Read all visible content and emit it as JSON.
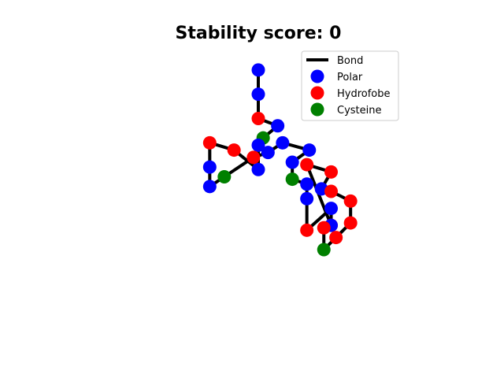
{
  "chart_data": {
    "type": "scatter",
    "title": "Stability score: 0",
    "xlabel": "",
    "ylabel": "",
    "axes_visible": false,
    "grid": false,
    "xlim": [
      -1,
      9
    ],
    "ylim": [
      -1,
      11
    ],
    "legend": {
      "placement": "top-right",
      "entries": [
        {
          "label": "Bond",
          "kind": "line",
          "color": "#000000"
        },
        {
          "label": "Polar",
          "kind": "marker",
          "color": "#0000ff"
        },
        {
          "label": "Hydrofobe",
          "kind": "marker",
          "color": "#ff0000"
        },
        {
          "label": "Cysteine",
          "kind": "marker",
          "color": "#008000"
        }
      ]
    },
    "bond_color": "#000000",
    "type_colors": {
      "P": "#0000ff",
      "H": "#ff0000",
      "C": "#008000"
    },
    "chain": [
      {
        "x": 4.0,
        "y": 10.0,
        "t": "P"
      },
      {
        "x": 4.0,
        "y": 9.0,
        "t": "P"
      },
      {
        "x": 4.0,
        "y": 8.0,
        "t": "H"
      },
      {
        "x": 4.8,
        "y": 7.7,
        "t": "P"
      },
      {
        "x": 4.2,
        "y": 7.2,
        "t": "C"
      },
      {
        "x": 4.0,
        "y": 6.9,
        "t": "P"
      },
      {
        "x": 4.0,
        "y": 5.9,
        "t": "P"
      },
      {
        "x": 3.0,
        "y": 6.7,
        "t": "H"
      },
      {
        "x": 2.0,
        "y": 7.0,
        "t": "H"
      },
      {
        "x": 2.0,
        "y": 6.0,
        "t": "P"
      },
      {
        "x": 2.0,
        "y": 5.2,
        "t": "P"
      },
      {
        "x": 2.6,
        "y": 5.6,
        "t": "C"
      },
      {
        "x": 3.8,
        "y": 6.4,
        "t": "H"
      },
      {
        "x": 4.4,
        "y": 6.6,
        "t": "P"
      },
      {
        "x": 5.0,
        "y": 7.0,
        "t": "P"
      },
      {
        "x": 6.1,
        "y": 6.7,
        "t": "P"
      },
      {
        "x": 5.4,
        "y": 6.2,
        "t": "P"
      },
      {
        "x": 5.4,
        "y": 5.5,
        "t": "C"
      },
      {
        "x": 6.0,
        "y": 5.3,
        "t": "P"
      },
      {
        "x": 6.0,
        "y": 4.7,
        "t": "P"
      },
      {
        "x": 6.0,
        "y": 3.4,
        "t": "H"
      },
      {
        "x": 7.0,
        "y": 4.3,
        "t": "P"
      },
      {
        "x": 7.0,
        "y": 3.6,
        "t": "H"
      },
      {
        "x": 7.0,
        "y": 3.6,
        "t": "P"
      },
      {
        "x": 6.0,
        "y": 6.1,
        "t": "H"
      },
      {
        "x": 7.0,
        "y": 5.8,
        "t": "H"
      },
      {
        "x": 6.6,
        "y": 5.1,
        "t": "P"
      },
      {
        "x": 7.0,
        "y": 5.0,
        "t": "H"
      },
      {
        "x": 7.8,
        "y": 4.6,
        "t": "H"
      },
      {
        "x": 7.8,
        "y": 3.7,
        "t": "H"
      },
      {
        "x": 7.2,
        "y": 3.1,
        "t": "H"
      },
      {
        "x": 6.7,
        "y": 2.6,
        "t": "C"
      },
      {
        "x": 6.7,
        "y": 3.5,
        "t": "H"
      }
    ]
  }
}
